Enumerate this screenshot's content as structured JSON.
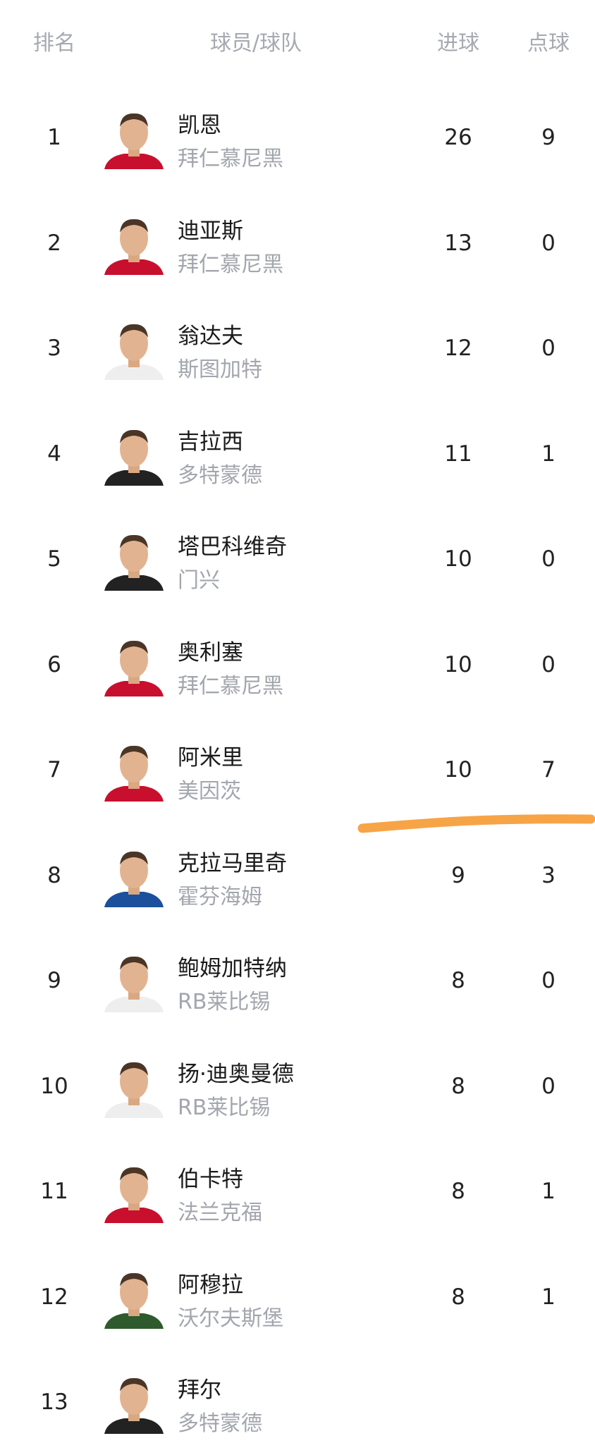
{
  "header": {
    "rank": "排名",
    "player_team": "球员/球队",
    "goals": "进球",
    "penalties": "点球"
  },
  "highlight_color": "#f7a446",
  "rows": [
    {
      "rank": "1",
      "name": "凯恩",
      "team": "拜仁慕尼黑",
      "goals": "26",
      "penalties": "9",
      "kit": "#c8102e"
    },
    {
      "rank": "2",
      "name": "迪亚斯",
      "team": "拜仁慕尼黑",
      "goals": "13",
      "penalties": "0",
      "kit": "#c8102e"
    },
    {
      "rank": "3",
      "name": "翁达夫",
      "team": "斯图加特",
      "goals": "12",
      "penalties": "0",
      "kit": "#eeeeee"
    },
    {
      "rank": "4",
      "name": "吉拉西",
      "team": "多特蒙德",
      "goals": "11",
      "penalties": "1",
      "kit": "#222222"
    },
    {
      "rank": "5",
      "name": "塔巴科维奇",
      "team": "门兴",
      "goals": "10",
      "penalties": "0",
      "kit": "#222222"
    },
    {
      "rank": "6",
      "name": "奥利塞",
      "team": "拜仁慕尼黑",
      "goals": "10",
      "penalties": "0",
      "kit": "#c8102e"
    },
    {
      "rank": "7",
      "name": "阿米里",
      "team": "美因茨",
      "goals": "10",
      "penalties": "7",
      "kit": "#c8102e"
    },
    {
      "rank": "8",
      "name": "克拉马里奇",
      "team": "霍芬海姆",
      "goals": "9",
      "penalties": "3",
      "kit": "#1c4f9c"
    },
    {
      "rank": "9",
      "name": "鲍姆加特纳",
      "team": "RB莱比锡",
      "goals": "8",
      "penalties": "0",
      "kit": "#eeeeee"
    },
    {
      "rank": "10",
      "name": "扬·迪奥曼德",
      "team": "RB莱比锡",
      "goals": "8",
      "penalties": "0",
      "kit": "#eeeeee"
    },
    {
      "rank": "11",
      "name": "伯卡特",
      "team": "法兰克福",
      "goals": "8",
      "penalties": "1",
      "kit": "#c8102e"
    },
    {
      "rank": "12",
      "name": "阿穆拉",
      "team": "沃尔夫斯堡",
      "goals": "8",
      "penalties": "1",
      "kit": "#2e5a2e"
    },
    {
      "rank": "13",
      "name": "拜尔",
      "team": "多特蒙德",
      "goals": "",
      "penalties": "",
      "kit": "#222222"
    }
  ]
}
